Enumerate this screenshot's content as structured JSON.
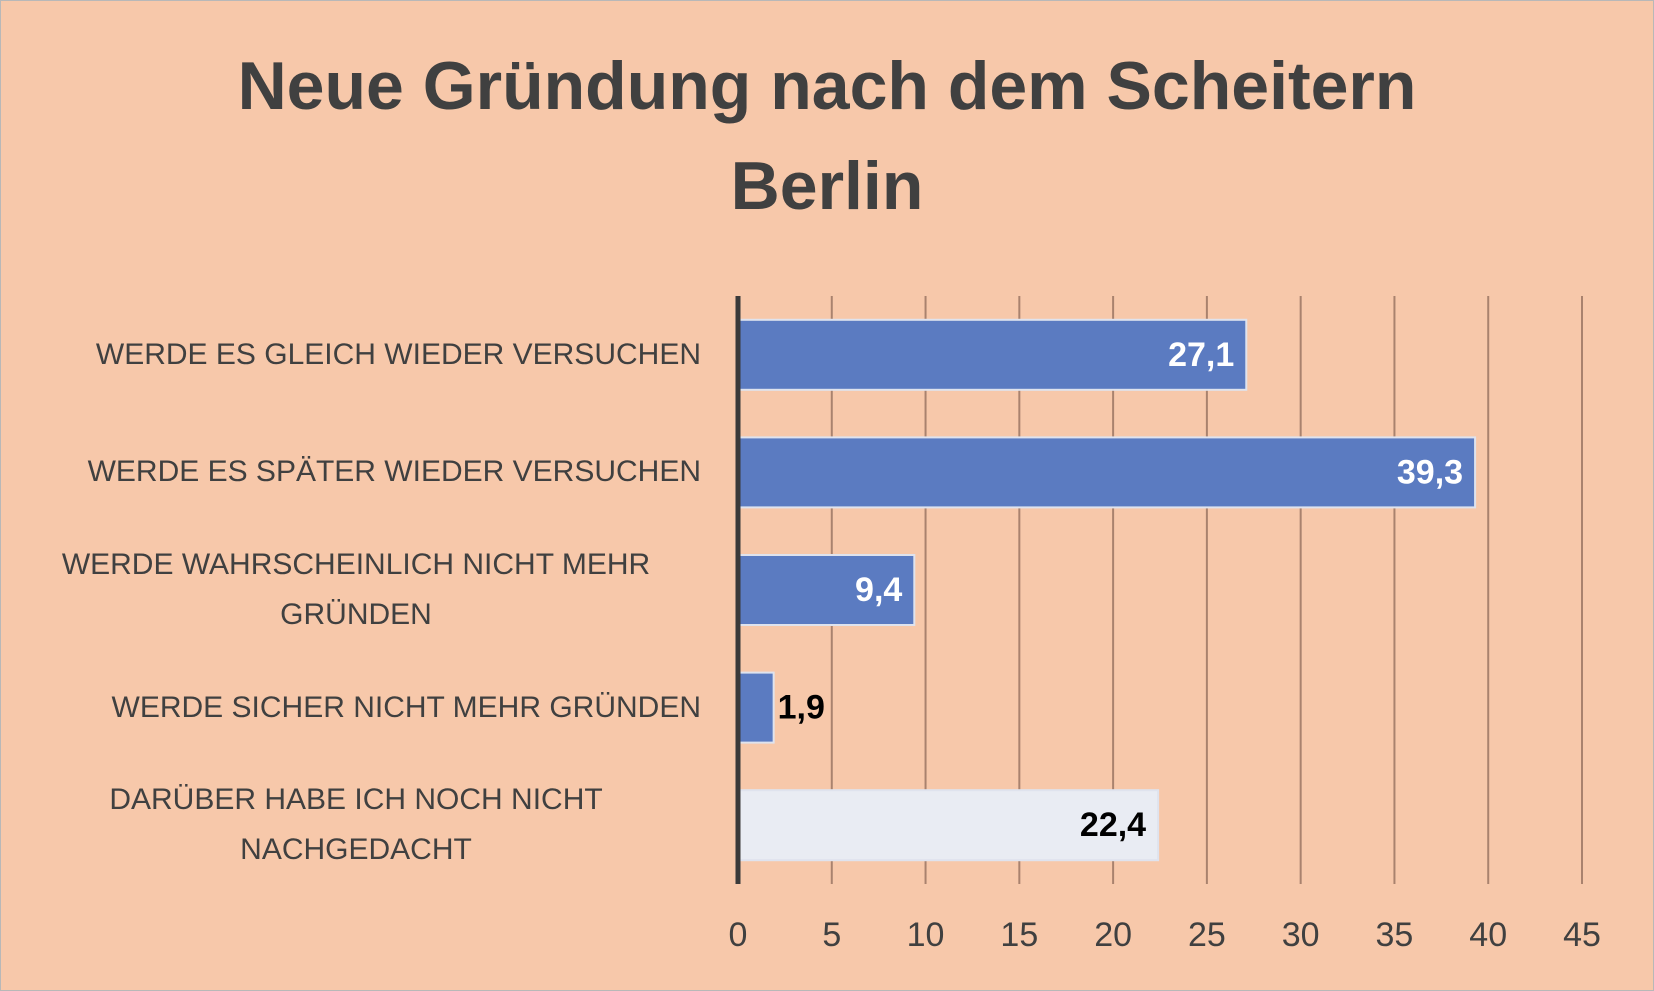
{
  "chart_data": {
    "type": "hbar",
    "title": "Neue Gründung nach dem Scheitern",
    "subtitle": "Berlin",
    "categories": [
      "WERDE ES GLEICH WIEDER VERSUCHEN",
      "WERDE ES SPÄTER WIEDER VERSUCHEN",
      "WERDE WAHRSCHEINLICH NICHT MEHR GRÜNDEN",
      "WERDE SICHER NICHT MEHR GRÜNDEN",
      "DARÜBER HABE ICH NOCH NICHT NACHGEDACHT"
    ],
    "values": [
      27.1,
      39.3,
      9.4,
      1.9,
      22.4
    ],
    "value_labels": [
      "27,1",
      "39,3",
      "9,4",
      "1,9",
      "22,4"
    ],
    "colors": [
      "#5b7bc1",
      "#5b7bc1",
      "#5b7bc1",
      "#5b7bc1",
      "#e9ecf3"
    ],
    "value_label_colors": [
      "#ffffff",
      "#ffffff",
      "#ffffff",
      "#000000",
      "#000000"
    ],
    "xlim": [
      0,
      45
    ],
    "xticks": [
      0,
      5,
      10,
      15,
      20,
      25,
      30,
      35,
      40,
      45
    ],
    "grid": true
  }
}
